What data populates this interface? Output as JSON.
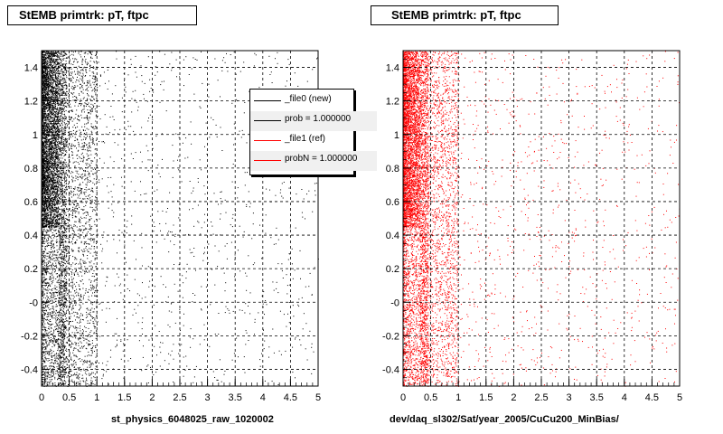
{
  "chart_data": [
    {
      "type": "scatter",
      "title": "StEMB primtrk: pT, ftpc",
      "xlabel": "st_physics_6048025_raw_1020002",
      "ylabel": "",
      "xlim": [
        0,
        5
      ],
      "ylim": [
        -0.5,
        1.5
      ],
      "x_ticks": [
        "0",
        "0.5",
        "1",
        "1.5",
        "2",
        "2.5",
        "3",
        "3.5",
        "4",
        "4.5",
        "5"
      ],
      "y_ticks": [
        "-0.4",
        "-0.2",
        "-0",
        "0.2",
        "0.4",
        "0.6",
        "0.8",
        "1",
        "1.2",
        "1.4"
      ],
      "grid": true,
      "series": [
        {
          "name": "_file0 (new)",
          "color": "#000000",
          "distribution": "dense near x=0, density falling with x, sparse beyond x=1"
        }
      ],
      "legend": {
        "placement": "top-right",
        "entries": [
          {
            "label": "_file0 (new)",
            "color": "#000000"
          },
          {
            "label": "prob = 1.000000",
            "color": "#000000"
          },
          {
            "label": "_file1 (ref)",
            "color": "#ff0000"
          },
          {
            "label": "probN = 1.000000",
            "color": "#ff0000"
          }
        ]
      }
    },
    {
      "type": "scatter",
      "title": "StEMB primtrk: pT, ftpc",
      "xlabel": "dev/daq_sl302/Sat/year_2005/CuCu200_MinBias/",
      "ylabel": "",
      "xlim": [
        0,
        5
      ],
      "ylim": [
        -0.5,
        1.5
      ],
      "x_ticks": [
        "0",
        "0.5",
        "1",
        "1.5",
        "2",
        "2.5",
        "3",
        "3.5",
        "4",
        "4.5",
        "5"
      ],
      "y_ticks": [
        "-0.4",
        "-0.2",
        "-0",
        "0.2",
        "0.4",
        "0.6",
        "0.8",
        "1",
        "1.2",
        "1.4"
      ],
      "grid": true,
      "series": [
        {
          "name": "_file1 (ref)",
          "color": "#ff0000",
          "distribution": "dense near x=0, density falling with x, sparse beyond x=1"
        }
      ]
    }
  ]
}
